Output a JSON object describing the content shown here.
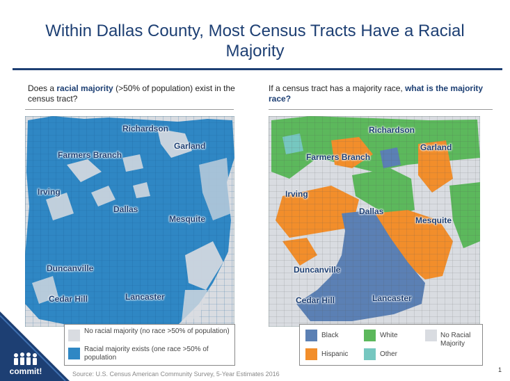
{
  "title": "Within Dallas County, Most Census Tracts Have a Racial Majority",
  "left_panel": {
    "question_pre": "Does a ",
    "question_bold": "racial majority",
    "question_post": " (>50% of population) exist in the census tract?",
    "cities": [
      "Richardson",
      "Garland",
      "Farmers Branch",
      "Irving",
      "Dallas",
      "Mesquite",
      "Duncanville",
      "Cedar Hill",
      "Lancaster"
    ],
    "legend": [
      {
        "label": "No racial majority (no race >50% of population)",
        "color": "#d9dce1"
      },
      {
        "label": "Racial majority exists (one race >50% of population",
        "color": "#2f87c4"
      }
    ]
  },
  "right_panel": {
    "question_pre": "If a census tract has a majority race, ",
    "question_bold": "what is the majority race?",
    "cities": [
      "Richardson",
      "Garland",
      "Farmers Branch",
      "Irving",
      "Dallas",
      "Mesquite",
      "Duncanville",
      "Cedar Hill",
      "Lancaster"
    ],
    "legend": [
      {
        "label": "Black",
        "color": "#5b80b4"
      },
      {
        "label": "White",
        "color": "#5cb85c"
      },
      {
        "label": "No Racial Majority",
        "color": "#d9dce1"
      },
      {
        "label": "Hispanic",
        "color": "#f28e2b"
      },
      {
        "label": "Other",
        "color": "#76c7c0"
      }
    ]
  },
  "source": "Source: U.S. Census American Community Survey, 5-Year Estimates 2016",
  "page_number": "1",
  "logo_text": "commit!",
  "colors": {
    "title": "#1d3f73",
    "brand": "#1d3f73"
  }
}
